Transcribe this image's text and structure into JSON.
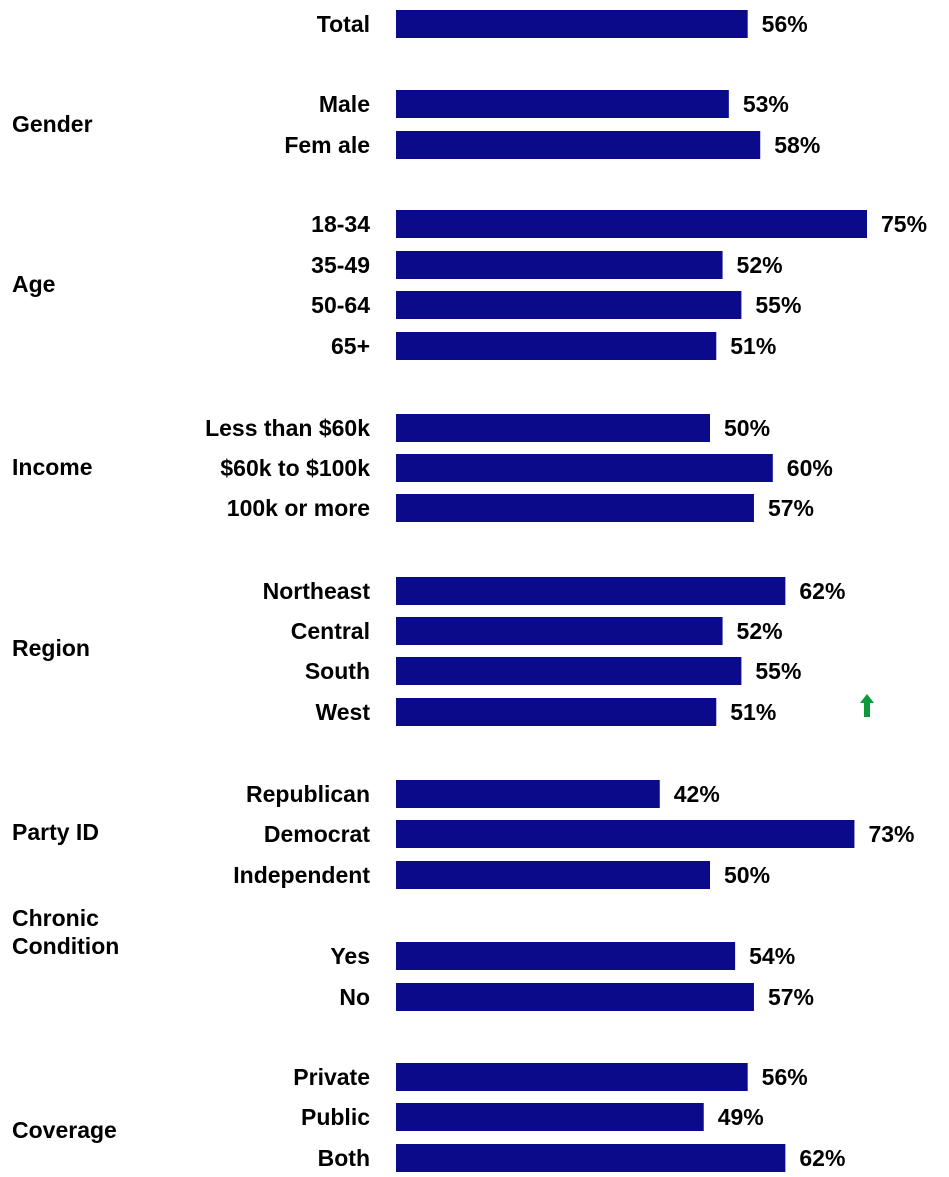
{
  "chart_data": {
    "type": "bar",
    "orientation": "horizontal",
    "bar_color": "#0a0a8a",
    "marker_color": "#0a9a3a",
    "marker_icon": "up-arrow-icon",
    "value_suffix": "%",
    "rows": [
      {
        "group": "",
        "label": "Total",
        "value": 56
      },
      {
        "group": "Gender",
        "label": "Male",
        "value": 53
      },
      {
        "group": "Gender",
        "label": "Fem ale",
        "value": 58
      },
      {
        "group": "Age",
        "label": "18-34",
        "value": 75
      },
      {
        "group": "Age",
        "label": "35-49",
        "value": 52
      },
      {
        "group": "Age",
        "label": "50-64",
        "value": 55
      },
      {
        "group": "Age",
        "label": "65+",
        "value": 51
      },
      {
        "group": "Income",
        "label": "Less than $60k",
        "value": 50
      },
      {
        "group": "Income",
        "label": "$60k to $100k",
        "value": 60
      },
      {
        "group": "Income",
        "label": "100k or more",
        "value": 57
      },
      {
        "group": "Region",
        "label": "Northeast",
        "value": 62
      },
      {
        "group": "Region",
        "label": "Central",
        "value": 52
      },
      {
        "group": "Region",
        "label": "South",
        "value": 55
      },
      {
        "group": "Region",
        "label": "West",
        "value": 51
      },
      {
        "group": "Party ID",
        "label": "Republican",
        "value": 42
      },
      {
        "group": "Party ID",
        "label": "Democrat",
        "value": 73
      },
      {
        "group": "Party ID",
        "label": "Independent",
        "value": 50
      },
      {
        "group": "Chronic Condition",
        "label": "Yes",
        "value": 54
      },
      {
        "group": "Chronic Condition",
        "label": "No",
        "value": 57
      },
      {
        "group": "Coverage",
        "label": "Private",
        "value": 56
      },
      {
        "group": "Coverage",
        "label": "Public",
        "value": 49
      },
      {
        "group": "Coverage",
        "label": "Both",
        "value": 62
      }
    ],
    "groups": [
      {
        "label_lines": [
          "Gender"
        ]
      },
      {
        "label_lines": [
          "Age"
        ]
      },
      {
        "label_lines": [
          "Income"
        ]
      },
      {
        "label_lines": [
          "Region"
        ]
      },
      {
        "label_lines": [
          "Party ID"
        ]
      },
      {
        "label_lines": [
          "Chronic",
          "Condition"
        ]
      },
      {
        "label_lines": [
          "Coverage"
        ]
      }
    ]
  }
}
